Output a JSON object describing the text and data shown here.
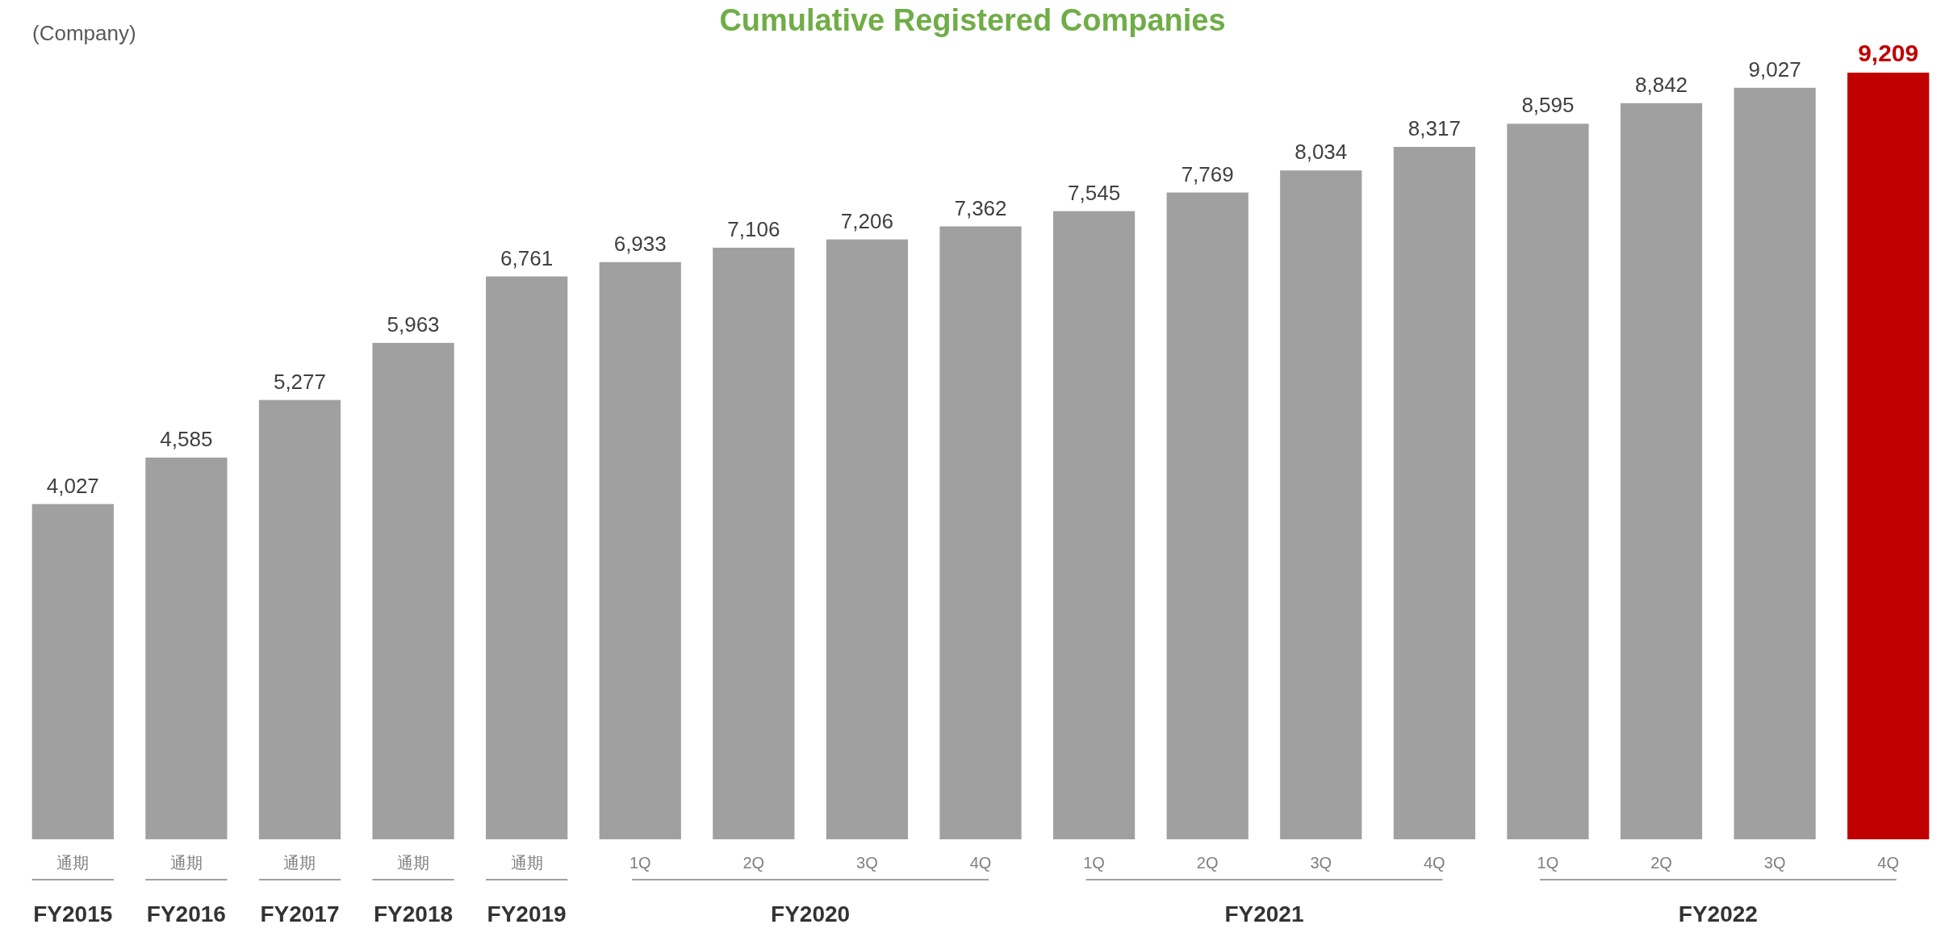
{
  "chart_data": {
    "type": "bar",
    "title": "Cumulative Registered Companies",
    "ylabel": "(Company)",
    "categories": [
      "通期",
      "通期",
      "通期",
      "通期",
      "通期",
      "1Q",
      "2Q",
      "3Q",
      "4Q",
      "1Q",
      "2Q",
      "3Q",
      "4Q",
      "1Q",
      "2Q",
      "3Q",
      "4Q"
    ],
    "values": [
      4027,
      4585,
      5277,
      5963,
      6761,
      6933,
      7106,
      7206,
      7362,
      7545,
      7769,
      8034,
      8317,
      8595,
      8842,
      9027,
      9209
    ],
    "colors": [
      "#a0a0a0",
      "#a0a0a0",
      "#a0a0a0",
      "#a0a0a0",
      "#a0a0a0",
      "#a0a0a0",
      "#a0a0a0",
      "#a0a0a0",
      "#a0a0a0",
      "#a0a0a0",
      "#a0a0a0",
      "#a0a0a0",
      "#a0a0a0",
      "#a0a0a0",
      "#a0a0a0",
      "#a0a0a0",
      "#c00000"
    ],
    "value_labels": [
      "4,027",
      "4,585",
      "5,277",
      "5,963",
      "6,761",
      "6,933",
      "7,106",
      "7,206",
      "7,362",
      "7,545",
      "7,769",
      "8,034",
      "8,317",
      "8,595",
      "8,842",
      "9,027",
      "9,209"
    ],
    "annotations": [
      "FY2015",
      "FY2016",
      "FY2017",
      "FY2018",
      "FY2019",
      "FY2020",
      "FY2021",
      "FY2022"
    ]
  }
}
